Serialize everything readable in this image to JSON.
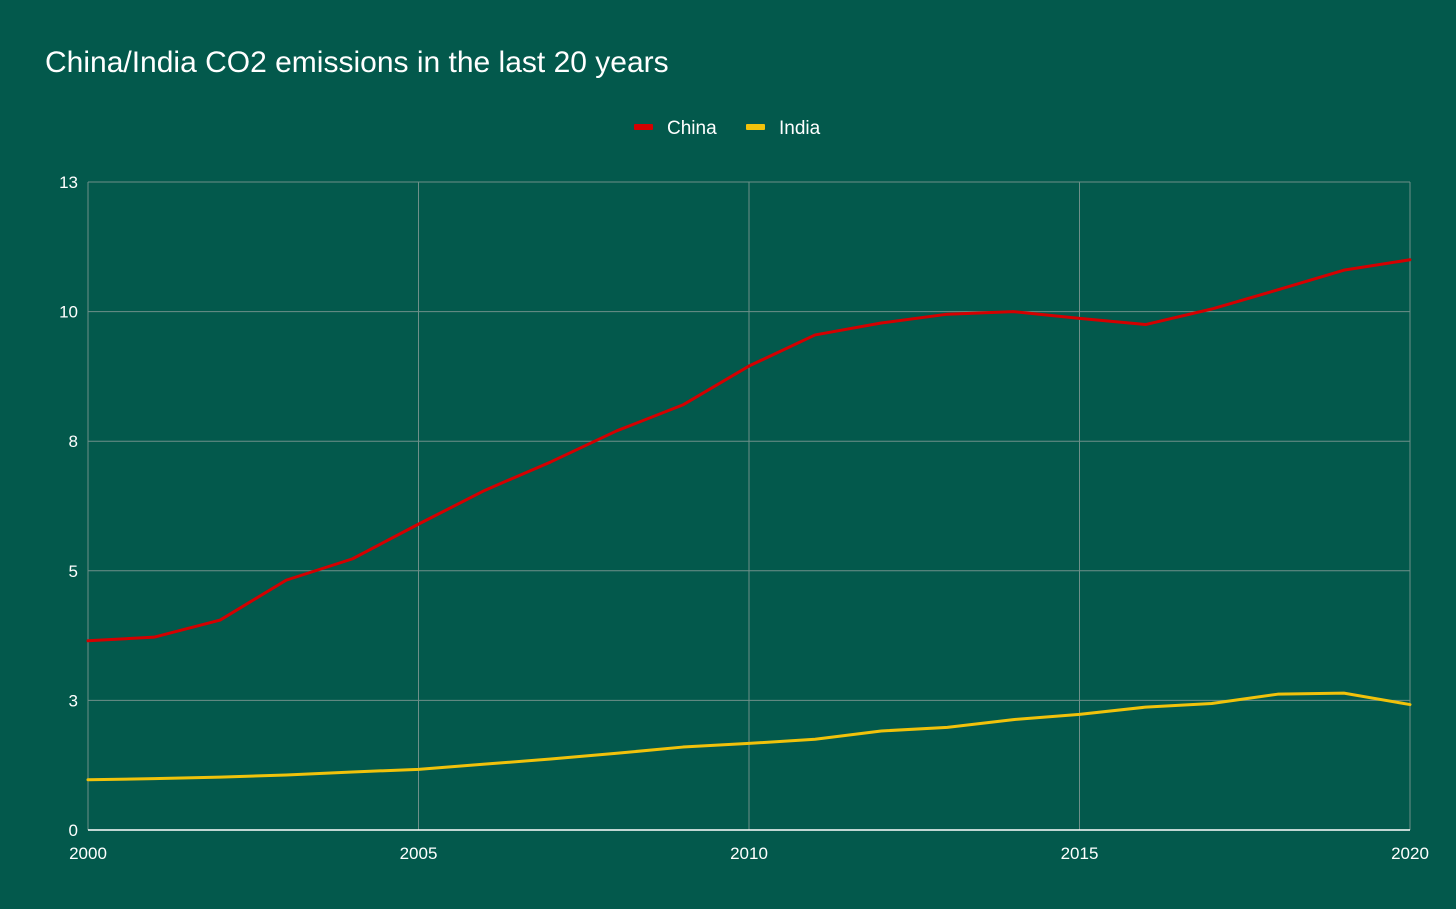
{
  "chart_data": {
    "type": "line",
    "title": "China/India CO2 emissions in the last 20 years",
    "xlabel": "",
    "ylabel": "",
    "x": [
      2000,
      2001,
      2002,
      2003,
      2004,
      2005,
      2006,
      2007,
      2008,
      2009,
      2010,
      2011,
      2012,
      2013,
      2014,
      2015,
      2016,
      2017,
      2018,
      2019,
      2020
    ],
    "xticks": [
      "2000",
      "2005",
      "2010",
      "2015",
      "2020"
    ],
    "xtick_values": [
      2000,
      2005,
      2010,
      2015,
      2020
    ],
    "yticks": [
      "0",
      "3",
      "5",
      "8",
      "10",
      "13"
    ],
    "ytick_values": [
      0,
      2.5,
      5,
      7.5,
      10,
      12.5
    ],
    "xlim": [
      2000,
      2020
    ],
    "ylim": [
      0,
      12.5
    ],
    "grid": true,
    "legend_position": "top-center",
    "series": [
      {
        "name": "China",
        "color": "#D40000",
        "values": [
          3.65,
          3.72,
          4.05,
          4.82,
          5.23,
          5.9,
          6.55,
          7.1,
          7.7,
          8.2,
          8.95,
          9.55,
          9.78,
          9.95,
          10.0,
          9.87,
          9.75,
          10.05,
          10.42,
          10.8,
          11.0
        ]
      },
      {
        "name": "India",
        "color": "#F1C20B",
        "values": [
          0.97,
          0.99,
          1.02,
          1.06,
          1.12,
          1.17,
          1.27,
          1.37,
          1.48,
          1.6,
          1.67,
          1.75,
          1.91,
          1.98,
          2.13,
          2.23,
          2.37,
          2.44,
          2.62,
          2.64,
          2.42
        ]
      }
    ],
    "colors": {
      "background": "#03594C",
      "gridline": "#6E8F89",
      "text": "#FFFFFF"
    }
  }
}
